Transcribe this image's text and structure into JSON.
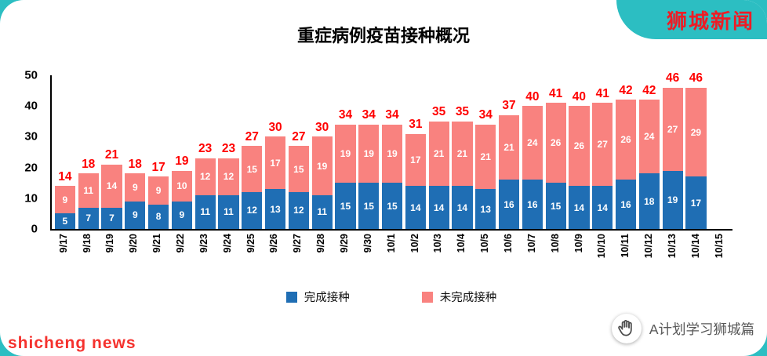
{
  "brand": {
    "banner": "狮城新闻",
    "watermark": "shicheng news",
    "footer": "A计划学习狮城篇"
  },
  "chart_data": {
    "type": "bar",
    "stacked": true,
    "title": "重症病例疫苗接种概况",
    "categories": [
      "9/17",
      "9/18",
      "9/19",
      "9/20",
      "9/21",
      "9/22",
      "9/23",
      "9/24",
      "9/25",
      "9/26",
      "9/27",
      "9/28",
      "9/29",
      "9/30",
      "10/1",
      "10/2",
      "10/3",
      "10/4",
      "10/5",
      "10/6",
      "10/7",
      "10/8",
      "10/9",
      "10/10",
      "10/11",
      "10/12",
      "10/13",
      "10/14",
      "10/15"
    ],
    "series": [
      {
        "name": "完成接种",
        "color": "#1f6eb4",
        "values": [
          5,
          7,
          7,
          9,
          8,
          9,
          11,
          11,
          12,
          13,
          12,
          11,
          15,
          15,
          15,
          14,
          14,
          14,
          13,
          16,
          16,
          15,
          14,
          14,
          16,
          18,
          19,
          17,
          null
        ]
      },
      {
        "name": "未完成接种",
        "color": "#f9827f",
        "values": [
          9,
          11,
          14,
          9,
          9,
          10,
          12,
          12,
          15,
          17,
          15,
          19,
          19,
          19,
          19,
          17,
          21,
          21,
          21,
          21,
          24,
          26,
          26,
          27,
          26,
          24,
          27,
          29,
          null
        ]
      }
    ],
    "totals": [
      14,
      18,
      21,
      18,
      17,
      19,
      23,
      23,
      27,
      30,
      27,
      30,
      34,
      34,
      34,
      31,
      35,
      35,
      34,
      37,
      40,
      41,
      40,
      41,
      42,
      42,
      46,
      46,
      null
    ],
    "ylim": [
      0,
      50
    ],
    "yticks": [
      0,
      10,
      20,
      30,
      40,
      50
    ],
    "grid": false,
    "legend_position": "bottom",
    "colors": {
      "total_label": "#ff0000",
      "bar_label": "#ffffff",
      "axis": "#000000",
      "frame": "#2cbec2"
    }
  }
}
